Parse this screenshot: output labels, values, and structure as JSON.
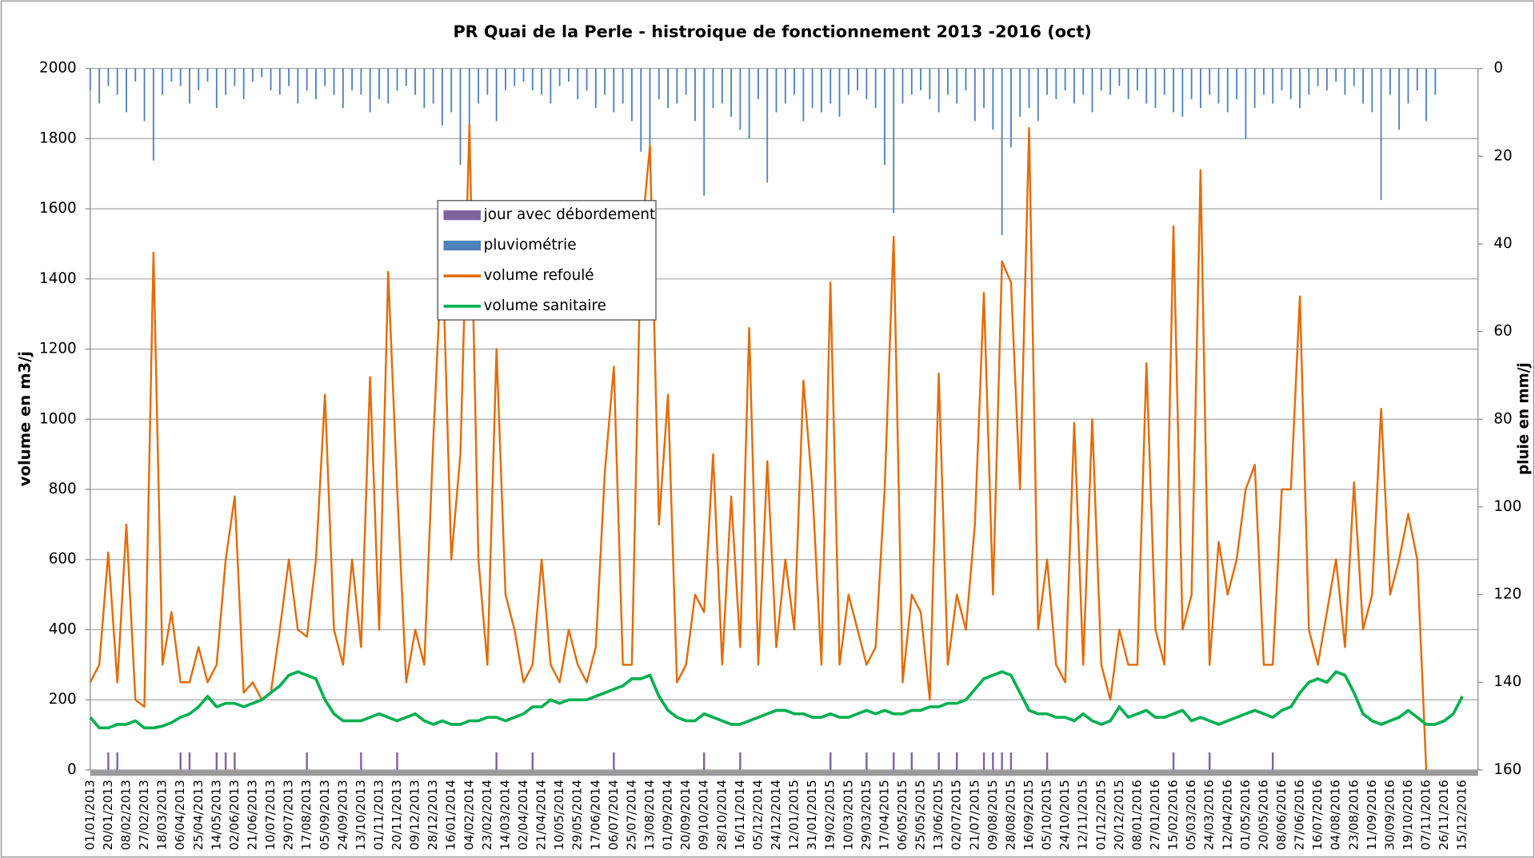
{
  "chart_data": {
    "type": "line",
    "title": "PR Quai de la Perle - histroique de fonctionnement 2013 -2016 (oct)",
    "ylabel": "volume en m3/j",
    "y2label": "pluie en mm/j",
    "categories": [
      "01/01/2013",
      null,
      "20/01/2013",
      null,
      "08/02/2013",
      null,
      "27/02/2013",
      null,
      "18/03/2013",
      null,
      "06/04/2013",
      null,
      "25/04/2013",
      null,
      "14/05/2013",
      null,
      "02/06/2013",
      null,
      "21/06/2013",
      null,
      "10/07/2013",
      null,
      "29/07/2013",
      null,
      "17/08/2013",
      null,
      "05/09/2013",
      null,
      "24/09/2013",
      null,
      "13/10/2013",
      null,
      "01/11/2013",
      null,
      "20/11/2013",
      null,
      "09/12/2013",
      null,
      "28/12/2013",
      null,
      "16/01/2014",
      null,
      "04/02/2014",
      null,
      "23/02/2014",
      null,
      "14/03/2014",
      null,
      "02/04/2014",
      null,
      "21/04/2014",
      null,
      "10/05/2014",
      null,
      "29/05/2014",
      null,
      "17/06/2014",
      null,
      "06/07/2014",
      null,
      "25/07/2014",
      null,
      "13/08/2014",
      null,
      "01/09/2014",
      null,
      "20/09/2014",
      null,
      "09/10/2014",
      null,
      "28/10/2014",
      null,
      "16/11/2014",
      null,
      "05/12/2014",
      null,
      "24/12/2014",
      null,
      "12/01/2015",
      null,
      "31/01/2015",
      null,
      "19/02/2015",
      null,
      "10/03/2015",
      null,
      "29/03/2015",
      null,
      "17/04/2015",
      null,
      "06/05/2015",
      null,
      "25/05/2015",
      null,
      "13/06/2015",
      null,
      "02/07/2015",
      null,
      "21/07/2015",
      null,
      "09/08/2015",
      null,
      "28/08/2015",
      null,
      "16/09/2015",
      null,
      "05/10/2015",
      null,
      "24/10/2015",
      null,
      "12/11/2015",
      null,
      "01/12/2015",
      null,
      "20/12/2015",
      null,
      "08/01/2016",
      null,
      "27/01/2016",
      null,
      "15/02/2016",
      null,
      "05/03/2016",
      null,
      "24/03/2016",
      null,
      "12/04/2016",
      null,
      "01/05/2016",
      null,
      "20/05/2016",
      null,
      "08/06/2016",
      null,
      "27/06/2016",
      null,
      "16/07/2016",
      null,
      "04/08/2016",
      null,
      "23/08/2016",
      null,
      "11/09/2016",
      null,
      "30/09/2016",
      null,
      "19/10/2016",
      null,
      "07/11/2016",
      null,
      "26/11/2016",
      null,
      "15/12/2016"
    ],
    "series": [
      {
        "name": "jour avec débordement",
        "kind": "bar",
        "color": "#8064a2",
        "values": [
          null,
          null,
          50,
          50,
          null,
          null,
          null,
          null,
          null,
          null,
          50,
          50,
          null,
          null,
          50,
          50,
          50,
          null,
          null,
          null,
          null,
          null,
          null,
          null,
          50,
          null,
          null,
          null,
          null,
          null,
          50,
          null,
          null,
          null,
          50,
          null,
          null,
          null,
          null,
          null,
          null,
          null,
          null,
          null,
          null,
          50,
          null,
          null,
          null,
          50,
          null,
          null,
          null,
          null,
          null,
          null,
          null,
          null,
          50,
          null,
          null,
          null,
          null,
          null,
          null,
          null,
          null,
          null,
          50,
          null,
          null,
          null,
          50,
          null,
          null,
          null,
          null,
          null,
          null,
          null,
          null,
          null,
          50,
          null,
          null,
          null,
          50,
          null,
          null,
          50,
          null,
          50,
          null,
          null,
          50,
          null,
          50,
          null,
          null,
          50,
          50,
          50,
          50,
          null,
          null,
          null,
          50,
          null,
          null,
          null,
          null,
          null,
          null,
          null,
          null,
          null,
          null,
          null,
          null,
          null,
          50,
          null,
          null,
          null,
          50,
          null,
          null,
          null,
          null,
          null,
          null,
          50,
          null,
          null,
          null,
          null,
          null,
          null,
          null,
          null,
          null,
          null,
          null,
          null,
          null,
          null,
          null,
          null,
          null,
          null,
          null,
          null,
          null
        ]
      },
      {
        "name": "pluviométrie",
        "kind": "bar",
        "axis": "y2",
        "color": "#4f81bd",
        "values": [
          5,
          8,
          4,
          6,
          10,
          3,
          12,
          21,
          6,
          3,
          4,
          8,
          5,
          3,
          9,
          6,
          4,
          7,
          3,
          2,
          5,
          6,
          4,
          8,
          5,
          7,
          4,
          6,
          9,
          5,
          6,
          10,
          7,
          8,
          5,
          4,
          6,
          9,
          8,
          13,
          10,
          22,
          16,
          8,
          6,
          12,
          5,
          4,
          3,
          5,
          6,
          8,
          4,
          3,
          7,
          5,
          9,
          6,
          10,
          8,
          12,
          19,
          20,
          7,
          9,
          8,
          6,
          12,
          29,
          9,
          8,
          11,
          14,
          16,
          7,
          26,
          10,
          8,
          6,
          12,
          9,
          10,
          8,
          11,
          6,
          5,
          7,
          9,
          22,
          33,
          8,
          6,
          5,
          7,
          10,
          6,
          8,
          5,
          12,
          9,
          14,
          38,
          18,
          11,
          9,
          12,
          6,
          7,
          5,
          8,
          6,
          10,
          5,
          6,
          4,
          7,
          5,
          8,
          9,
          6,
          10,
          11,
          7,
          9,
          6,
          8,
          10,
          7,
          16,
          9,
          6,
          8,
          5,
          7,
          9,
          6,
          4,
          5,
          3,
          6,
          4,
          8,
          10,
          30,
          6,
          14,
          8,
          5,
          12,
          6,
          null,
          null,
          null
        ]
      },
      {
        "name": "volume refoulé",
        "kind": "line",
        "color": "#e36c0a",
        "values": [
          250,
          300,
          620,
          250,
          700,
          200,
          180,
          1475,
          300,
          450,
          250,
          250,
          350,
          250,
          300,
          600,
          780,
          220,
          250,
          200,
          220,
          400,
          600,
          400,
          380,
          600,
          1070,
          400,
          300,
          600,
          350,
          1120,
          400,
          1420,
          800,
          250,
          400,
          300,
          940,
          1500,
          600,
          900,
          1840,
          600,
          300,
          1200,
          500,
          400,
          250,
          300,
          600,
          300,
          250,
          400,
          300,
          250,
          350,
          850,
          1150,
          300,
          300,
          1500,
          1780,
          700,
          1070,
          250,
          300,
          500,
          450,
          900,
          300,
          780,
          350,
          1260,
          300,
          880,
          350,
          600,
          400,
          1110,
          800,
          300,
          1390,
          300,
          500,
          400,
          300,
          350,
          800,
          1520,
          250,
          500,
          450,
          200,
          1130,
          300,
          500,
          400,
          700,
          1360,
          500,
          1450,
          1390,
          800,
          1830,
          400,
          600,
          300,
          250,
          990,
          300,
          1000,
          300,
          200,
          400,
          300,
          300,
          1160,
          400,
          300,
          1550,
          400,
          500,
          1710,
          300,
          650,
          500,
          600,
          800,
          870,
          300,
          300,
          800,
          800,
          1350,
          400,
          300,
          450,
          600,
          350,
          820,
          400,
          500,
          1030,
          500,
          600,
          730,
          600,
          0,
          null,
          null,
          null,
          null
        ]
      },
      {
        "name": "volume sanitaire",
        "kind": "line",
        "color": "#00b050",
        "values": [
          150,
          120,
          120,
          130,
          130,
          140,
          120,
          120,
          125,
          135,
          150,
          160,
          180,
          210,
          180,
          190,
          190,
          180,
          190,
          200,
          220,
          240,
          270,
          280,
          270,
          260,
          200,
          160,
          140,
          140,
          140,
          150,
          160,
          150,
          140,
          150,
          160,
          140,
          130,
          140,
          130,
          130,
          140,
          140,
          150,
          150,
          140,
          150,
          160,
          180,
          180,
          200,
          190,
          200,
          200,
          200,
          210,
          220,
          230,
          240,
          260,
          260,
          270,
          210,
          170,
          150,
          140,
          140,
          160,
          150,
          140,
          130,
          130,
          140,
          150,
          160,
          170,
          170,
          160,
          160,
          150,
          150,
          160,
          150,
          150,
          160,
          170,
          160,
          170,
          160,
          160,
          170,
          170,
          180,
          180,
          190,
          190,
          200,
          230,
          260,
          270,
          280,
          270,
          220,
          170,
          160,
          160,
          150,
          150,
          140,
          160,
          140,
          130,
          140,
          180,
          150,
          160,
          170,
          150,
          150,
          160,
          170,
          140,
          150,
          140,
          130,
          140,
          150,
          160,
          170,
          160,
          150,
          170,
          180,
          220,
          250,
          260,
          250,
          280,
          270,
          220,
          160,
          140,
          130,
          140,
          150,
          170,
          150,
          130,
          130,
          140,
          160,
          210
        ]
      }
    ],
    "ylim": [
      0,
      2000
    ],
    "yticks": [
      0,
      200,
      400,
      600,
      800,
      1000,
      1200,
      1400,
      1600,
      1800,
      2000
    ],
    "y2lim": [
      0,
      160
    ],
    "y2ticks": [
      0,
      20,
      40,
      60,
      80,
      100,
      120,
      140,
      160
    ],
    "y2_inverted": true,
    "grid": true,
    "legend": "upper left"
  }
}
